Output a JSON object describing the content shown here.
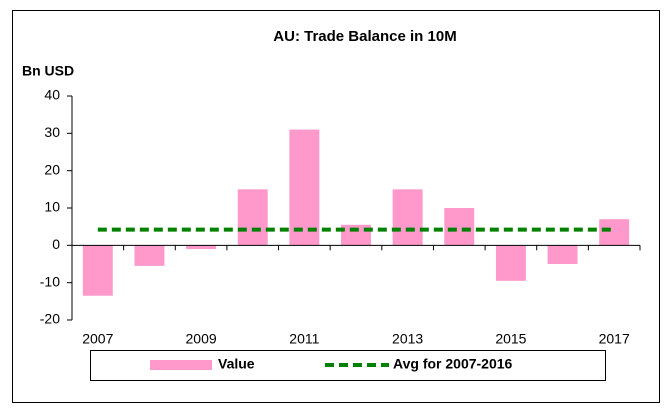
{
  "chart_data": {
    "type": "bar",
    "title": "AU: Trade Balance in 10M",
    "y_axis_label": "Bn USD",
    "categories": [
      "2007",
      null,
      "2009",
      null,
      "2011",
      null,
      "2013",
      null,
      "2015",
      null,
      "2017"
    ],
    "series": [
      {
        "name": "Value",
        "type": "bar",
        "color": "#ff99cc",
        "values": [
          -13.5,
          -5.5,
          -1,
          15,
          31,
          5.5,
          15,
          10,
          -9.5,
          -5,
          7
        ]
      },
      {
        "name": "Avg for 2007-2016",
        "type": "line",
        "color": "#008000",
        "dashed": true,
        "values": [
          4.2,
          4.2,
          4.2,
          4.2,
          4.2,
          4.2,
          4.2,
          4.2,
          4.2,
          4.2,
          4.2
        ]
      }
    ],
    "ylim": [
      -20,
      40
    ],
    "yticks": [
      -20,
      -10,
      0,
      10,
      20,
      30,
      40
    ],
    "grid": false,
    "legend": "bottom"
  }
}
